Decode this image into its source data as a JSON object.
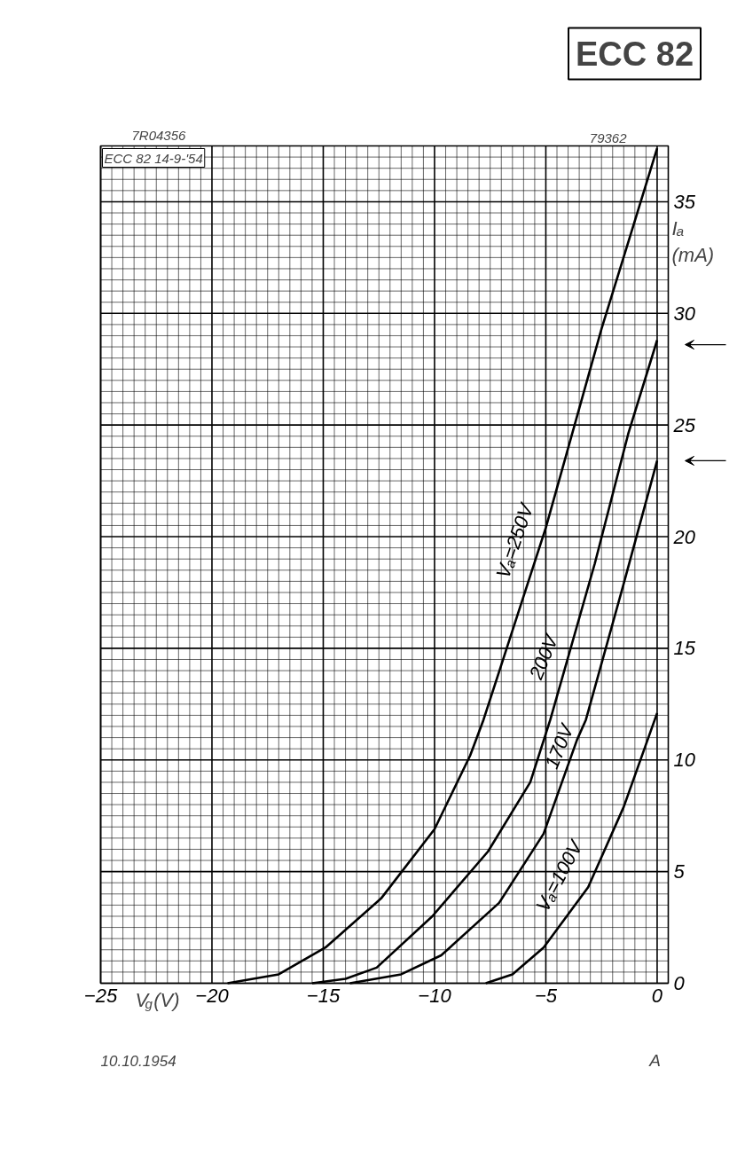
{
  "chart_data": {
    "type": "line",
    "title": "ECC 82",
    "xlabel": "V$_{g}$(V)",
    "ylabel": "Iₐ (mA)",
    "xlim": [
      -25,
      0.5
    ],
    "ylim": [
      0,
      37.5
    ],
    "xticks": [
      {
        "value": -25,
        "label": "−25"
      },
      {
        "value": -20,
        "label": "−20"
      },
      {
        "value": -15,
        "label": "−15"
      },
      {
        "value": -10,
        "label": "−10"
      },
      {
        "value": -5,
        "label": "−5"
      },
      0
    ],
    "yticks": [
      0,
      5,
      10,
      15,
      20,
      25,
      30,
      35
    ],
    "grid": true,
    "marker": "none",
    "line_style": "solid",
    "series": [
      {
        "name": "Vₐ=250V",
        "color": "#000000",
        "x": [
          -19.3,
          -17,
          -14.9,
          -12.4,
          -10,
          -8.4,
          -7.8,
          -5,
          -2.5,
          -1.2,
          0
        ],
        "values": [
          0,
          0.4,
          1.6,
          3.8,
          6.9,
          10.2,
          11.8,
          20.4,
          29.3,
          33.5,
          37.4
        ]
      },
      {
        "name": "200V",
        "color": "#000000",
        "x": [
          -15.5,
          -14,
          -12.6,
          -10.1,
          -7.6,
          -5.7,
          -4.8,
          -2.8,
          -1.3,
          0
        ],
        "values": [
          0,
          0.2,
          0.7,
          3.0,
          5.9,
          9.0,
          11.8,
          18.8,
          24.6,
          28.8
        ]
      },
      {
        "name": "170V",
        "color": "#000000",
        "x": [
          -13.8,
          -11.5,
          -9.7,
          -7.1,
          -5.1,
          -3.6,
          -3.2,
          -1.5,
          0
        ],
        "values": [
          0,
          0.4,
          1.25,
          3.6,
          6.7,
          10.9,
          11.8,
          17.9,
          23.4
        ]
      },
      {
        "name": "Vₐ=100V",
        "color": "#000000",
        "x": [
          -7.7,
          -6.5,
          -5.1,
          -3.1,
          -1.5,
          0
        ],
        "values": [
          0,
          0.4,
          1.6,
          4.3,
          7.9,
          12.1
        ]
      }
    ],
    "ref_lines": [
      {
        "axis": "y",
        "value": 28.6,
        "label": null
      },
      {
        "axis": "y",
        "value": 23.4,
        "label": null
      }
    ],
    "annotations": [
      "7R04356",
      "79362",
      "ECC 82 14-9-'54",
      "10.10.1954",
      "A"
    ]
  }
}
